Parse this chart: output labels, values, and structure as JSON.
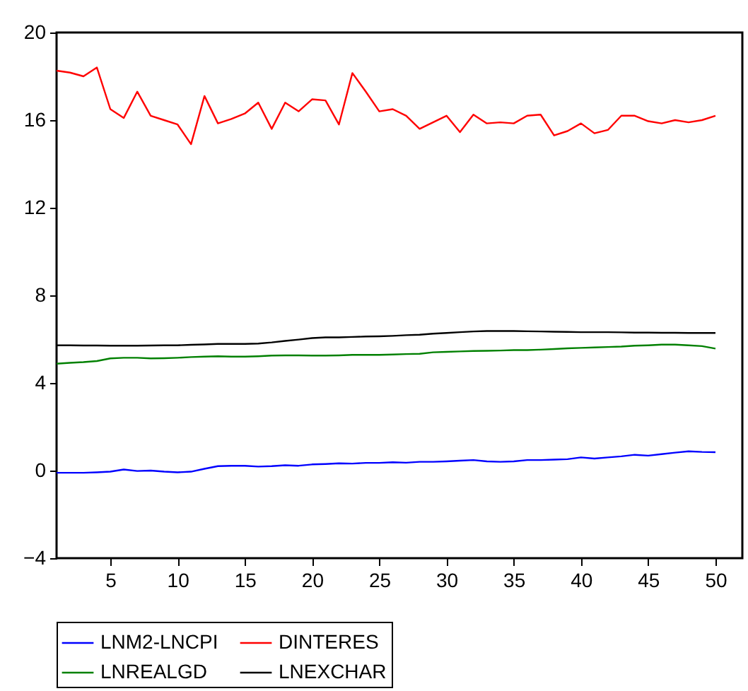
{
  "chart_data": {
    "type": "line",
    "x": [
      1,
      2,
      3,
      4,
      5,
      6,
      7,
      8,
      9,
      10,
      11,
      12,
      13,
      14,
      15,
      16,
      17,
      18,
      19,
      20,
      21,
      22,
      23,
      24,
      25,
      26,
      27,
      28,
      29,
      30,
      31,
      32,
      33,
      34,
      35,
      36,
      37,
      38,
      39,
      40,
      41,
      42,
      43,
      44,
      45,
      46,
      47,
      48,
      49,
      50
    ],
    "series": [
      {
        "name": "LNM2-LNCPI",
        "color": "#0000ff",
        "values": [
          -0.1,
          -0.1,
          -0.1,
          -0.08,
          -0.05,
          0.05,
          -0.02,
          0.0,
          -0.05,
          -0.08,
          -0.05,
          0.08,
          0.2,
          0.22,
          0.22,
          0.18,
          0.2,
          0.24,
          0.22,
          0.28,
          0.3,
          0.33,
          0.32,
          0.35,
          0.35,
          0.38,
          0.36,
          0.4,
          0.4,
          0.42,
          0.45,
          0.48,
          0.42,
          0.4,
          0.42,
          0.48,
          0.48,
          0.5,
          0.52,
          0.6,
          0.55,
          0.6,
          0.65,
          0.72,
          0.68,
          0.75,
          0.82,
          0.88,
          0.85,
          0.84
        ]
      },
      {
        "name": "DINTERES",
        "color": "#ff0000",
        "values": [
          18.26,
          18.17,
          18.0,
          18.4,
          16.5,
          16.1,
          17.3,
          16.2,
          16.0,
          15.8,
          14.9,
          17.1,
          15.85,
          16.05,
          16.3,
          16.8,
          15.6,
          16.8,
          16.4,
          16.95,
          16.9,
          15.8,
          18.15,
          17.3,
          16.4,
          16.5,
          16.2,
          15.6,
          15.9,
          16.2,
          15.45,
          16.25,
          15.85,
          15.9,
          15.85,
          16.2,
          16.25,
          15.3,
          15.5,
          15.85,
          15.4,
          15.55,
          16.2,
          16.2,
          15.95,
          15.85,
          16.0,
          15.9,
          16.0,
          16.2
        ]
      },
      {
        "name": "LNREALGD",
        "color": "#008000",
        "values": [
          4.88,
          4.92,
          4.95,
          5.0,
          5.12,
          5.15,
          5.15,
          5.12,
          5.13,
          5.15,
          5.18,
          5.2,
          5.22,
          5.2,
          5.2,
          5.22,
          5.25,
          5.26,
          5.26,
          5.25,
          5.25,
          5.26,
          5.28,
          5.28,
          5.28,
          5.3,
          5.32,
          5.33,
          5.4,
          5.42,
          5.44,
          5.46,
          5.47,
          5.48,
          5.5,
          5.5,
          5.52,
          5.55,
          5.58,
          5.6,
          5.62,
          5.64,
          5.66,
          5.7,
          5.72,
          5.75,
          5.75,
          5.72,
          5.68,
          5.57
        ]
      },
      {
        "name": "LNEXCHAR",
        "color": "#000000",
        "values": [
          5.72,
          5.72,
          5.71,
          5.71,
          5.7,
          5.7,
          5.7,
          5.71,
          5.72,
          5.72,
          5.74,
          5.76,
          5.78,
          5.78,
          5.78,
          5.8,
          5.85,
          5.92,
          5.98,
          6.05,
          6.08,
          6.08,
          6.1,
          6.12,
          6.13,
          6.15,
          6.18,
          6.2,
          6.25,
          6.28,
          6.32,
          6.35,
          6.37,
          6.37,
          6.37,
          6.36,
          6.35,
          6.34,
          6.33,
          6.32,
          6.32,
          6.32,
          6.31,
          6.3,
          6.3,
          6.29,
          6.29,
          6.28,
          6.28,
          6.28
        ]
      }
    ],
    "xlim": [
      1,
      52
    ],
    "xticks": [
      5,
      10,
      15,
      20,
      25,
      30,
      35,
      40,
      45,
      50
    ],
    "ylim": [
      -4,
      20
    ],
    "yticks": [
      -4,
      0,
      4,
      8,
      12,
      16,
      20
    ],
    "grid": false,
    "legend": "bottom"
  }
}
